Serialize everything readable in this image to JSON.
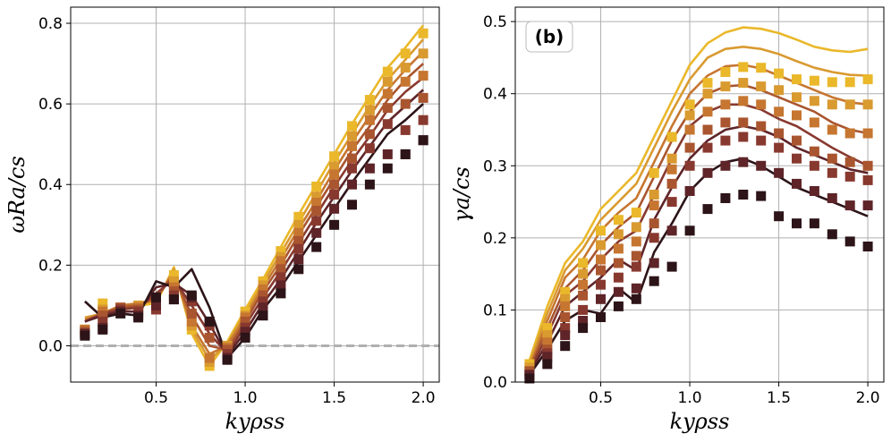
{
  "chart_data": [
    {
      "type": "line",
      "panel": "a",
      "xlabel": "k_y ρ_ss",
      "xlabel_display": "kyρss",
      "ylabel": "ω_R a/c_s",
      "ylabel_display": "ωRa/cs",
      "xlim": [
        0.02,
        2.09
      ],
      "ylim": [
        -0.09,
        0.84
      ],
      "xticks": [
        0.5,
        1.0,
        1.5,
        2.0
      ],
      "xtick_labels": [
        "0.5",
        "1.0",
        "1.5",
        "2.0"
      ],
      "yticks": [
        0.0,
        0.2,
        0.4,
        0.6,
        0.8
      ],
      "ytick_labels": [
        "0.0",
        "0.2",
        "0.4",
        "0.6",
        "0.8"
      ],
      "grid": true,
      "zero_line": {
        "y": 0.0,
        "style": "dashed",
        "color": "#b0b0b0"
      },
      "x": [
        0.1,
        0.2,
        0.3,
        0.4,
        0.5,
        0.6,
        0.7,
        0.8,
        0.9,
        1.0,
        1.1,
        1.2,
        1.3,
        1.4,
        1.5,
        1.6,
        1.7,
        1.8,
        1.9,
        2.0
      ],
      "series": [
        {
          "name": "s1",
          "color": "#eab82a",
          "line": [
            0.07,
            0.075,
            0.095,
            0.1,
            0.105,
            0.195,
            0.03,
            -0.05,
            0.01,
            0.09,
            0.165,
            0.245,
            0.325,
            0.4,
            0.475,
            0.55,
            0.62,
            0.69,
            0.74,
            0.795
          ],
          "markers": [
            0.04,
            0.105,
            0.09,
            0.095,
            0.1,
            0.175,
            0.04,
            -0.05,
            0.0,
            0.085,
            0.16,
            0.235,
            0.32,
            0.395,
            0.47,
            0.545,
            0.61,
            0.68,
            0.725,
            0.775
          ]
        },
        {
          "name": "s2",
          "color": "#d99a30",
          "line": [
            0.07,
            0.08,
            0.1,
            0.105,
            0.11,
            0.19,
            0.04,
            -0.035,
            0.005,
            0.08,
            0.155,
            0.23,
            0.305,
            0.38,
            0.455,
            0.525,
            0.595,
            0.66,
            0.71,
            0.76
          ],
          "markers": [
            0.04,
            0.09,
            0.09,
            0.1,
            0.1,
            0.16,
            0.05,
            -0.04,
            0.0,
            0.075,
            0.15,
            0.22,
            0.3,
            0.37,
            0.445,
            0.52,
            0.585,
            0.655,
            0.69,
            0.725
          ]
        },
        {
          "name": "s3",
          "color": "#c67630",
          "line": [
            0.065,
            0.08,
            0.1,
            0.105,
            0.115,
            0.185,
            0.05,
            -0.02,
            0.0,
            0.07,
            0.145,
            0.215,
            0.29,
            0.36,
            0.435,
            0.505,
            0.57,
            0.635,
            0.685,
            0.73
          ],
          "markers": [
            0.04,
            0.085,
            0.095,
            0.095,
            0.095,
            0.145,
            0.06,
            -0.03,
            -0.005,
            0.07,
            0.14,
            0.21,
            0.28,
            0.355,
            0.425,
            0.495,
            0.56,
            0.625,
            0.655,
            0.67
          ]
        },
        {
          "name": "s4",
          "color": "#a9552f",
          "line": [
            0.06,
            0.08,
            0.095,
            0.1,
            0.12,
            0.175,
            0.075,
            0.0,
            -0.01,
            0.06,
            0.135,
            0.2,
            0.275,
            0.345,
            0.415,
            0.485,
            0.545,
            0.61,
            0.66,
            0.7
          ],
          "markers": [
            0.035,
            0.075,
            0.095,
            0.09,
            0.09,
            0.135,
            0.08,
            0.02,
            -0.01,
            0.06,
            0.125,
            0.19,
            0.26,
            0.335,
            0.4,
            0.465,
            0.525,
            0.59,
            0.6,
            0.615
          ]
        },
        {
          "name": "s5",
          "color": "#88392f",
          "line": [
            0.06,
            0.08,
            0.09,
            0.095,
            0.13,
            0.165,
            0.1,
            0.03,
            -0.02,
            0.05,
            0.12,
            0.185,
            0.255,
            0.325,
            0.395,
            0.46,
            0.52,
            0.585,
            0.63,
            0.665
          ],
          "markers": [
            0.03,
            0.06,
            0.09,
            0.085,
            0.09,
            0.125,
            0.11,
            0.05,
            -0.02,
            0.045,
            0.11,
            0.17,
            0.24,
            0.31,
            0.375,
            0.44,
            0.49,
            0.55,
            0.535,
            0.56
          ]
        },
        {
          "name": "s6",
          "color": "#5e2428",
          "line": [
            0.06,
            0.075,
            0.085,
            0.085,
            0.145,
            0.155,
            0.125,
            0.055,
            -0.025,
            0.035,
            0.105,
            0.165,
            0.235,
            0.305,
            0.37,
            0.435,
            0.495,
            0.555,
            0.595,
            0.635
          ],
          "markers": [
            0.03,
            0.045,
            0.085,
            0.075,
            0.1,
            0.115,
            0.12,
            0.06,
            -0.03,
            0.035,
            0.095,
            0.15,
            0.215,
            0.28,
            0.34,
            0.4,
            0.44,
            0.475,
            0.475,
            0.51
          ]
        },
        {
          "name": "s7",
          "color": "#2c1418",
          "line": [
            0.11,
            0.07,
            0.08,
            0.075,
            0.16,
            0.145,
            0.19,
            0.095,
            -0.03,
            0.02,
            0.09,
            0.145,
            0.21,
            0.275,
            0.34,
            0.405,
            0.465,
            0.525,
            0.56,
            0.6
          ],
          "markers": [
            0.025,
            0.04,
            0.08,
            0.07,
            0.12,
            0.115,
            0.125,
            0.06,
            -0.035,
            0.02,
            0.075,
            0.13,
            0.19,
            0.245,
            0.3,
            0.35,
            0.4,
            0.44,
            0.475,
            0.51
          ]
        }
      ]
    },
    {
      "type": "line",
      "panel": "b",
      "panel_label": "(b)",
      "xlabel": "k_y ρ_ss",
      "xlabel_display": "kyρss",
      "ylabel": "γ a/c_s",
      "ylabel_display": "γa/cs",
      "xlim": [
        0.02,
        2.09
      ],
      "ylim": [
        0.0,
        0.52
      ],
      "xticks": [
        0.5,
        1.0,
        1.5,
        2.0
      ],
      "xtick_labels": [
        "0.5",
        "1.0",
        "1.5",
        "2.0"
      ],
      "yticks": [
        0.0,
        0.1,
        0.2,
        0.3,
        0.4,
        0.5
      ],
      "ytick_labels": [
        "0.0",
        "0.1",
        "0.2",
        "0.3",
        "0.4",
        "0.5"
      ],
      "grid": true,
      "x": [
        0.1,
        0.2,
        0.3,
        0.4,
        0.5,
        0.6,
        0.7,
        0.8,
        0.9,
        1.0,
        1.1,
        1.2,
        1.3,
        1.4,
        1.5,
        1.6,
        1.7,
        1.8,
        1.9,
        2.0
      ],
      "series": [
        {
          "name": "s1",
          "color": "#eab82a",
          "line": [
            0.03,
            0.105,
            0.165,
            0.195,
            0.24,
            0.265,
            0.29,
            0.34,
            0.39,
            0.44,
            0.47,
            0.485,
            0.492,
            0.49,
            0.484,
            0.475,
            0.465,
            0.46,
            0.458,
            0.462
          ],
          "markers": [
            0.025,
            0.075,
            0.125,
            0.165,
            0.21,
            0.225,
            0.235,
            0.29,
            0.34,
            0.385,
            0.415,
            0.43,
            0.437,
            0.436,
            0.428,
            0.42,
            0.418,
            0.416,
            0.416,
            0.42
          ]
        },
        {
          "name": "s2",
          "color": "#d99a30",
          "line": [
            0.025,
            0.095,
            0.155,
            0.185,
            0.225,
            0.25,
            0.275,
            0.325,
            0.375,
            0.42,
            0.45,
            0.462,
            0.465,
            0.462,
            0.455,
            0.445,
            0.436,
            0.43,
            0.426,
            0.425
          ],
          "markers": [
            0.02,
            0.065,
            0.115,
            0.15,
            0.19,
            0.205,
            0.215,
            0.26,
            0.31,
            0.37,
            0.4,
            0.41,
            0.415,
            0.41,
            0.405,
            0.395,
            0.39,
            0.385,
            0.385,
            0.385
          ]
        },
        {
          "name": "s3",
          "color": "#c67630",
          "line": [
            0.02,
            0.085,
            0.145,
            0.17,
            0.21,
            0.235,
            0.255,
            0.305,
            0.355,
            0.4,
            0.425,
            0.438,
            0.44,
            0.435,
            0.425,
            0.415,
            0.405,
            0.395,
            0.388,
            0.385
          ],
          "markers": [
            0.015,
            0.055,
            0.105,
            0.135,
            0.17,
            0.185,
            0.195,
            0.245,
            0.295,
            0.35,
            0.375,
            0.385,
            0.39,
            0.385,
            0.375,
            0.37,
            0.36,
            0.35,
            0.345,
            0.345
          ]
        },
        {
          "name": "s4",
          "color": "#a9552f",
          "line": [
            0.018,
            0.075,
            0.13,
            0.155,
            0.19,
            0.215,
            0.235,
            0.285,
            0.335,
            0.375,
            0.4,
            0.41,
            0.412,
            0.405,
            0.395,
            0.385,
            0.375,
            0.36,
            0.35,
            0.345
          ],
          "markers": [
            0.015,
            0.045,
            0.09,
            0.12,
            0.155,
            0.165,
            0.175,
            0.22,
            0.275,
            0.325,
            0.35,
            0.36,
            0.36,
            0.355,
            0.345,
            0.335,
            0.32,
            0.31,
            0.305,
            0.3
          ]
        },
        {
          "name": "s5",
          "color": "#88392f",
          "line": [
            0.015,
            0.065,
            0.12,
            0.14,
            0.17,
            0.195,
            0.21,
            0.26,
            0.31,
            0.355,
            0.375,
            0.385,
            0.385,
            0.378,
            0.365,
            0.355,
            0.34,
            0.325,
            0.312,
            0.3
          ],
          "markers": [
            0.01,
            0.04,
            0.075,
            0.1,
            0.135,
            0.145,
            0.16,
            0.2,
            0.25,
            0.3,
            0.325,
            0.335,
            0.34,
            0.335,
            0.325,
            0.31,
            0.3,
            0.29,
            0.285,
            0.28
          ]
        },
        {
          "name": "s6",
          "color": "#5e2428",
          "line": [
            0.012,
            0.055,
            0.105,
            0.125,
            0.145,
            0.17,
            0.155,
            0.225,
            0.27,
            0.31,
            0.335,
            0.35,
            0.355,
            0.35,
            0.34,
            0.325,
            0.315,
            0.305,
            0.295,
            0.29
          ],
          "markers": [
            0.01,
            0.035,
            0.065,
            0.085,
            0.115,
            0.125,
            0.13,
            0.165,
            0.21,
            0.265,
            0.29,
            0.3,
            0.305,
            0.3,
            0.29,
            0.275,
            0.265,
            0.255,
            0.245,
            0.245
          ]
        },
        {
          "name": "s7",
          "color": "#2c1418",
          "line": [
            0.01,
            0.045,
            0.085,
            0.1,
            0.095,
            0.13,
            0.11,
            0.18,
            0.22,
            0.265,
            0.29,
            0.305,
            0.31,
            0.3,
            0.285,
            0.27,
            0.26,
            0.25,
            0.24,
            0.23
          ],
          "markers": [
            0.005,
            0.025,
            0.05,
            0.075,
            0.09,
            0.105,
            0.115,
            0.14,
            0.16,
            0.21,
            0.24,
            0.255,
            0.26,
            0.258,
            0.23,
            0.22,
            0.22,
            0.205,
            0.195,
            0.188
          ]
        }
      ]
    }
  ]
}
